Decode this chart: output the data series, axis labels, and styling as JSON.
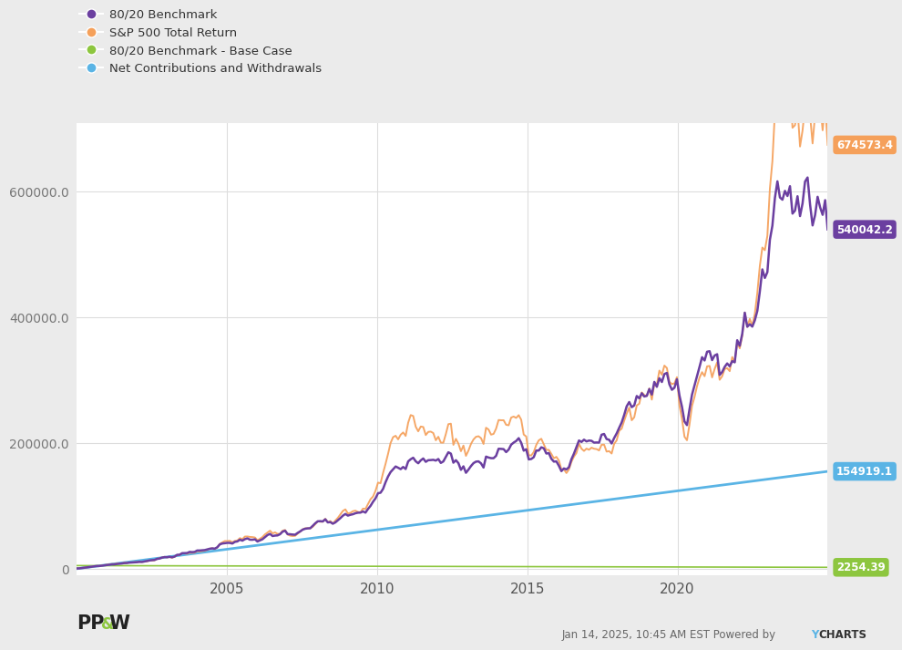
{
  "legend_entries": [
    {
      "label": "80/20 Benchmark",
      "color": "#6B3FA0"
    },
    {
      "label": "S&P 500 Total Return",
      "color": "#F5A05A"
    },
    {
      "label": "80/20 Benchmark - Base Case",
      "color": "#8DC63F"
    },
    {
      "label": "Net Contributions and Withdrawals",
      "color": "#5AB4E5"
    }
  ],
  "end_labels": [
    {
      "value": 674573.4,
      "color": "#F5A05A",
      "text": "674573.4"
    },
    {
      "value": 540042.2,
      "color": "#6B3FA0",
      "text": "540042.2"
    },
    {
      "value": 154919.1,
      "color": "#5AB4E5",
      "text": "154919.1"
    },
    {
      "value": 2254.39,
      "color": "#8DC63F",
      "text": "2254.39"
    }
  ],
  "yticks": [
    0,
    200000,
    400000,
    600000
  ],
  "ytick_labels": [
    "0",
    "200000.0",
    "400000.0",
    "600000.0"
  ],
  "xticks": [
    2005,
    2010,
    2015,
    2020
  ],
  "year_start": 2000,
  "year_end": 2025,
  "ylim_min": -10000,
  "ylim_max": 710000,
  "background_color": "#ebebeb",
  "plot_bg_color": "#ffffff",
  "grid_color": "#dddddd",
  "watermark_y_color": "#5AB4E5"
}
